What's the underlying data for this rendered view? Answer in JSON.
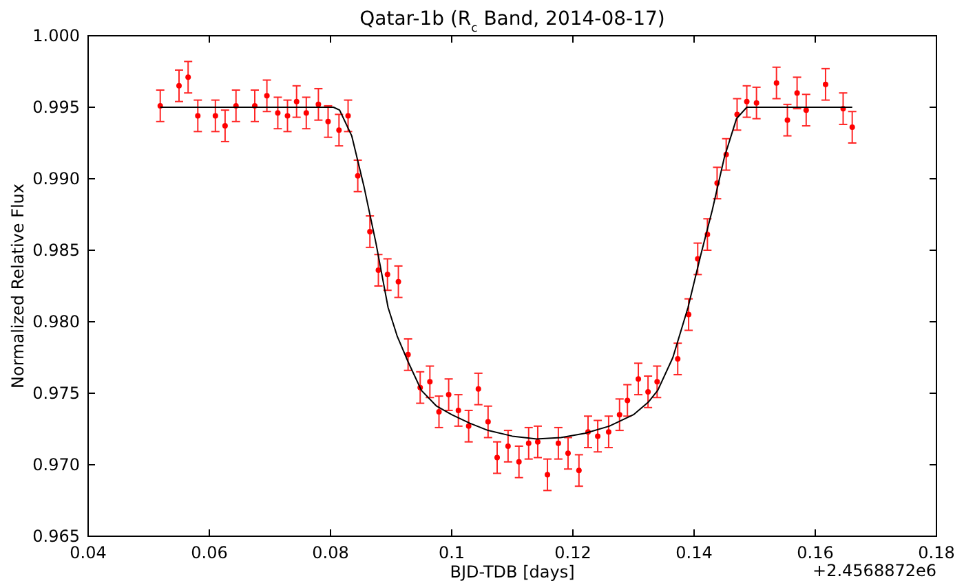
{
  "chart_data": {
    "type": "scatter",
    "title": "Qatar-1b (R$_{c}$ Band, 2014-08-17)",
    "xlabel": "BJD-TDB [days]",
    "ylabel": "Normalized Relative Flux",
    "annotations": [
      "+2.4568872e6"
    ],
    "xlim": [
      0.04,
      0.18
    ],
    "xticks": [
      0.04,
      0.06,
      0.08,
      0.1,
      0.12,
      0.14,
      0.16,
      0.18
    ],
    "ylim": [
      0.965,
      1.0
    ],
    "yticks": [
      0.965,
      {
        "value": 0.97,
        "label": "0.970"
      },
      0.975,
      {
        "value": 0.98,
        "label": "0.980"
      },
      0.985,
      {
        "value": 0.99,
        "label": "0.990"
      },
      0.995,
      {
        "value": 1.0,
        "label": "1.000"
      }
    ],
    "grid": false,
    "series": [
      {
        "color": "#ff0000",
        "marker": "circle",
        "x": [
          0.0519,
          0.055,
          0.0565,
          0.0581,
          0.061,
          0.0626,
          0.0644,
          0.0675,
          0.0695,
          0.0713,
          0.0729,
          0.0744,
          0.076,
          0.078,
          0.0796,
          0.0814,
          0.0829,
          0.0845,
          0.0865,
          0.0879,
          0.0894,
          0.0912,
          0.0928,
          0.0948,
          0.0964,
          0.0979,
          0.0995,
          0.1011,
          0.1028,
          0.1044,
          0.106,
          0.1075,
          0.1093,
          0.1111,
          0.1127,
          0.1142,
          0.1158,
          0.1176,
          0.1192,
          0.121,
          0.1225,
          0.1241,
          0.1259,
          0.1277,
          0.129,
          0.1308,
          0.1324,
          0.1339,
          0.1373,
          0.1391,
          0.1406,
          0.1422,
          0.1438,
          0.1453,
          0.1471,
          0.1487,
          0.1503,
          0.1536,
          0.1554,
          0.157,
          0.1585,
          0.1617,
          0.1646,
          0.1661
        ],
        "values": [
          0.9951,
          0.9965,
          0.9971,
          0.9944,
          0.9944,
          0.9937,
          0.9951,
          0.9951,
          0.9958,
          0.9946,
          0.9944,
          0.9954,
          0.9946,
          0.9952,
          0.994,
          0.9934,
          0.9944,
          0.9902,
          0.9863,
          0.9836,
          0.9833,
          0.9828,
          0.9777,
          0.9754,
          0.9758,
          0.9737,
          0.9749,
          0.9738,
          0.9727,
          0.9753,
          0.973,
          0.9705,
          0.9713,
          0.9702,
          0.9715,
          0.9716,
          0.9693,
          0.9715,
          0.9708,
          0.9696,
          0.9723,
          0.972,
          0.9723,
          0.9735,
          0.9745,
          0.976,
          0.9751,
          0.9758,
          0.9774,
          0.9805,
          0.9844,
          0.9861,
          0.9897,
          0.9917,
          0.9945,
          0.9954,
          0.9953,
          0.9967,
          0.9941,
          0.996,
          0.9948,
          0.9966,
          0.9949,
          0.9936
        ],
        "errors": [
          0.0011,
          0.0011,
          0.0011,
          0.0011,
          0.0011,
          0.0011,
          0.0011,
          0.0011,
          0.0011,
          0.0011,
          0.0011,
          0.0011,
          0.0011,
          0.0011,
          0.0011,
          0.0011,
          0.0011,
          0.0011,
          0.0011,
          0.0011,
          0.0011,
          0.0011,
          0.0011,
          0.0011,
          0.0011,
          0.0011,
          0.0011,
          0.0011,
          0.0011,
          0.0011,
          0.0011,
          0.0011,
          0.0011,
          0.0011,
          0.0011,
          0.0011,
          0.0011,
          0.0011,
          0.0011,
          0.0011,
          0.0011,
          0.0011,
          0.0011,
          0.0011,
          0.0011,
          0.0011,
          0.0011,
          0.0011,
          0.0011,
          0.0011,
          0.0011,
          0.0011,
          0.0011,
          0.0011,
          0.0011,
          0.0011,
          0.0011,
          0.0011,
          0.0011,
          0.0011,
          0.0011,
          0.0011,
          0.0011,
          0.0011
        ]
      },
      {
        "type": "line",
        "color": "#000000",
        "marker": "none",
        "line_style": "solid",
        "x": [
          0.0519,
          0.0805,
          0.0815,
          0.0835,
          0.0855,
          0.0875,
          0.0895,
          0.091,
          0.0928,
          0.095,
          0.0975,
          0.1,
          0.103,
          0.106,
          0.11,
          0.114,
          0.118,
          0.122,
          0.126,
          0.13,
          0.1325,
          0.134,
          0.1365,
          0.139,
          0.141,
          0.143,
          0.145,
          0.147,
          0.1487,
          0.1661
        ],
        "values": [
          0.995,
          0.995,
          0.9948,
          0.993,
          0.9895,
          0.9855,
          0.981,
          0.979,
          0.9772,
          0.9752,
          0.9741,
          0.9735,
          0.9729,
          0.9724,
          0.972,
          0.9718,
          0.9719,
          0.9722,
          0.9727,
          0.9735,
          0.9744,
          0.9752,
          0.9775,
          0.981,
          0.9845,
          0.9878,
          0.9915,
          0.9942,
          0.995,
          0.995
        ]
      }
    ]
  }
}
